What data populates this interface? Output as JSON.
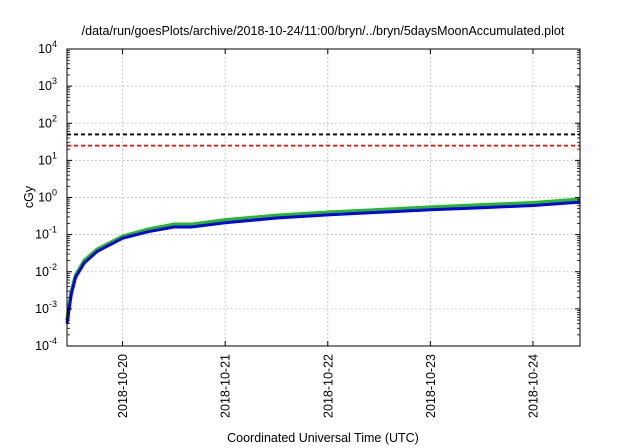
{
  "chart_data": {
    "type": "line",
    "title": "/data/run/goesPlots/archive/2018-10-24/11:00/bryn/../bryn/5daysMoonAccumulated.plot",
    "xlabel": "Coordinated Universal Time (UTC)",
    "ylabel": "cGy",
    "y_scale": "log",
    "ylim": [
      0.0001,
      10000
    ],
    "y_ticks": [
      {
        "base": "10",
        "exp": "-4"
      },
      {
        "base": "10",
        "exp": "-3"
      },
      {
        "base": "10",
        "exp": "-2"
      },
      {
        "base": "10",
        "exp": "-1"
      },
      {
        "base": "10",
        "exp": "0"
      },
      {
        "base": "10",
        "exp": "1"
      },
      {
        "base": "10",
        "exp": "2"
      },
      {
        "base": "10",
        "exp": "3"
      },
      {
        "base": "10",
        "exp": "4"
      }
    ],
    "xlim": [
      "2018-10-19T11:00",
      "2018-10-24T11:00"
    ],
    "x_ticks": [
      "2018-10-20",
      "2018-10-21",
      "2018-10-22",
      "2018-10-23",
      "2018-10-24"
    ],
    "grid": true,
    "reference_lines": [
      {
        "y": 50,
        "color": "#000000",
        "style": "dashed"
      },
      {
        "y": 25,
        "color": "#ff0000",
        "style": "dashed"
      }
    ],
    "series": [
      {
        "color": "#22bb22",
        "points": [
          [
            "2018-10-19T11:00",
            0.0005
          ],
          [
            "2018-10-19T12:00",
            0.003
          ],
          [
            "2018-10-19T13:00",
            0.008
          ],
          [
            "2018-10-19T15:00",
            0.02
          ],
          [
            "2018-10-19T18:00",
            0.04
          ],
          [
            "2018-10-20T00:00",
            0.09
          ],
          [
            "2018-10-20T06:00",
            0.14
          ],
          [
            "2018-10-20T12:00",
            0.19
          ],
          [
            "2018-10-20T16:00",
            0.19
          ],
          [
            "2018-10-21T00:00",
            0.25
          ],
          [
            "2018-10-21T12:00",
            0.33
          ],
          [
            "2018-10-22T00:00",
            0.4
          ],
          [
            "2018-10-22T12:00",
            0.47
          ],
          [
            "2018-10-23T00:00",
            0.55
          ],
          [
            "2018-10-23T12:00",
            0.63
          ],
          [
            "2018-10-24T00:00",
            0.72
          ],
          [
            "2018-10-24T11:00",
            0.9
          ]
        ]
      },
      {
        "color": "#0000ee",
        "points": [
          [
            "2018-10-19T11:00",
            0.0004
          ],
          [
            "2018-10-19T12:00",
            0.0025
          ],
          [
            "2018-10-19T13:00",
            0.007
          ],
          [
            "2018-10-19T15:00",
            0.017
          ],
          [
            "2018-10-19T18:00",
            0.035
          ],
          [
            "2018-10-20T00:00",
            0.08
          ],
          [
            "2018-10-20T06:00",
            0.12
          ],
          [
            "2018-10-20T12:00",
            0.16
          ],
          [
            "2018-10-20T16:00",
            0.16
          ],
          [
            "2018-10-21T00:00",
            0.21
          ],
          [
            "2018-10-21T12:00",
            0.28
          ],
          [
            "2018-10-22T00:00",
            0.34
          ],
          [
            "2018-10-22T12:00",
            0.4
          ],
          [
            "2018-10-23T00:00",
            0.47
          ],
          [
            "2018-10-23T12:00",
            0.53
          ],
          [
            "2018-10-24T00:00",
            0.61
          ],
          [
            "2018-10-24T11:00",
            0.75
          ]
        ]
      }
    ]
  }
}
